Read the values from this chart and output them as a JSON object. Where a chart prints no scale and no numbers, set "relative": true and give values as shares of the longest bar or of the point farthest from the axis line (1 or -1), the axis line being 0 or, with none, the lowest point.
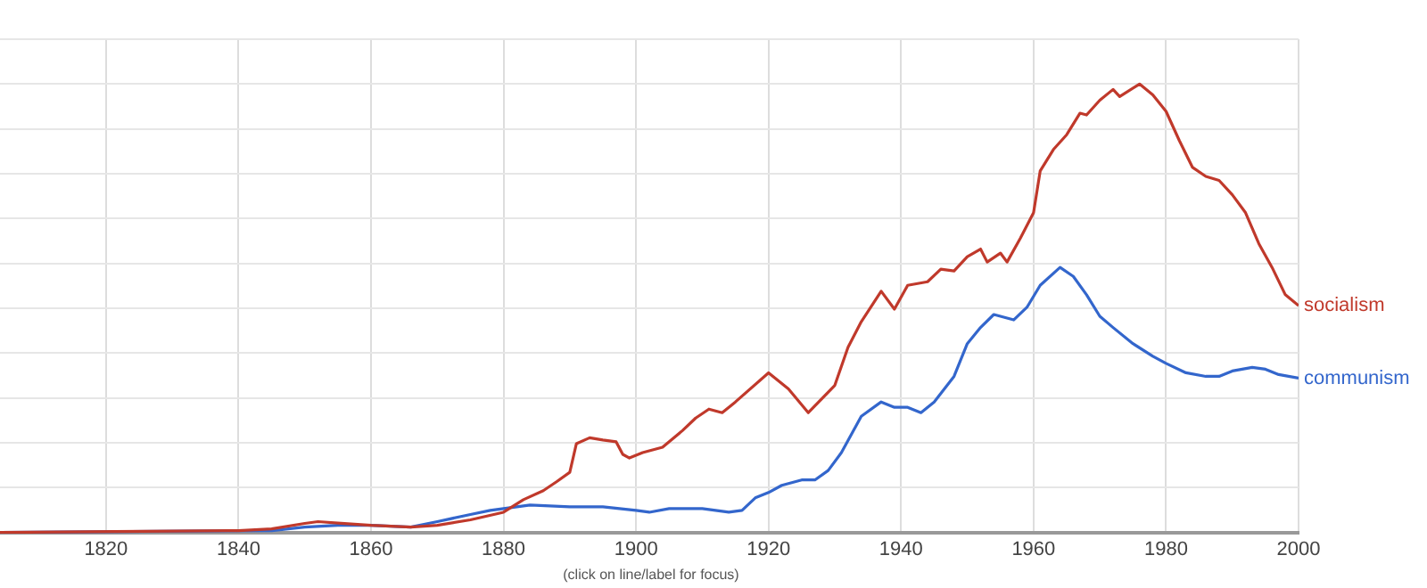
{
  "chart_data": {
    "type": "line",
    "relative": true,
    "x": [
      1804,
      1840,
      1845,
      1850,
      1852,
      1856,
      1860,
      1866,
      1870,
      1875,
      1880,
      1883,
      1886,
      1888,
      1890,
      1891,
      1893,
      1895,
      1897,
      1898,
      1899,
      1901,
      1904,
      1907,
      1909,
      1911,
      1913,
      1915,
      1920,
      1923,
      1926,
      1930,
      1932,
      1934,
      1937,
      1939,
      1941,
      1944,
      1946,
      1948,
      1950,
      1952,
      1953,
      1955,
      1956,
      1958,
      1960,
      1961,
      1963,
      1965,
      1967,
      1968,
      1970,
      1972,
      1973,
      1976,
      1978,
      1980,
      1982,
      1984,
      1986,
      1988,
      1990,
      1992,
      1994,
      1996,
      1998,
      2000
    ],
    "series": [
      {
        "name": "socialism",
        "color": "#c0392b",
        "values": [
          0,
          0.004,
          0.008,
          0.02,
          0.024,
          0.02,
          0.016,
          0.012,
          0.016,
          0.028,
          0.045,
          0.073,
          0.093,
          0.113,
          0.134,
          0.198,
          0.211,
          0.206,
          0.202,
          0.174,
          0.166,
          0.178,
          0.19,
          0.227,
          0.255,
          0.275,
          0.267,
          0.291,
          0.356,
          0.32,
          0.267,
          0.328,
          0.413,
          0.47,
          0.538,
          0.498,
          0.551,
          0.559,
          0.587,
          0.583,
          0.615,
          0.632,
          0.603,
          0.623,
          0.603,
          0.656,
          0.713,
          0.806,
          0.854,
          0.887,
          0.935,
          0.931,
          0.964,
          0.988,
          0.972,
          1,
          0.976,
          0.939,
          0.874,
          0.814,
          0.794,
          0.785,
          0.753,
          0.713,
          0.644,
          0.591,
          0.53,
          0.506
        ]
      },
      {
        "name": "communism",
        "color": "#3366cc",
        "x": [
          1804,
          1845,
          1850,
          1855,
          1860,
          1866,
          1870,
          1875,
          1878,
          1882,
          1884,
          1890,
          1895,
          1900,
          1902,
          1905,
          1910,
          1912,
          1914,
          1916,
          1918,
          1920,
          1922,
          1925,
          1927,
          1929,
          1931,
          1934,
          1937,
          1939,
          1941,
          1943,
          1945,
          1948,
          1950,
          1952,
          1954,
          1956,
          1957,
          1959,
          1961,
          1964,
          1966,
          1968,
          1970,
          1972,
          1975,
          1978,
          1980,
          1983,
          1986,
          1988,
          1990,
          1993,
          1995,
          1997,
          2000
        ],
        "values": [
          0,
          0.004,
          0.012,
          0.016,
          0.016,
          0.012,
          0.024,
          0.04,
          0.049,
          0.057,
          0.061,
          0.057,
          0.057,
          0.049,
          0.045,
          0.053,
          0.053,
          0.049,
          0.045,
          0.049,
          0.077,
          0.089,
          0.105,
          0.117,
          0.117,
          0.138,
          0.178,
          0.259,
          0.291,
          0.279,
          0.279,
          0.267,
          0.291,
          0.348,
          0.421,
          0.457,
          0.486,
          0.478,
          0.474,
          0.502,
          0.551,
          0.591,
          0.571,
          0.53,
          0.482,
          0.457,
          0.421,
          0.393,
          0.377,
          0.356,
          0.348,
          0.348,
          0.36,
          0.368,
          0.364,
          0.352,
          0.344
        ]
      }
    ],
    "xlim": [
      1804,
      2000
    ],
    "xticks": [
      1820,
      1840,
      1860,
      1880,
      1900,
      1920,
      1940,
      1960,
      1980,
      2000
    ],
    "grid": true,
    "legend": false,
    "marker": "none",
    "line_style": "solid",
    "annotations": [
      "(click on line/label for focus)"
    ]
  }
}
